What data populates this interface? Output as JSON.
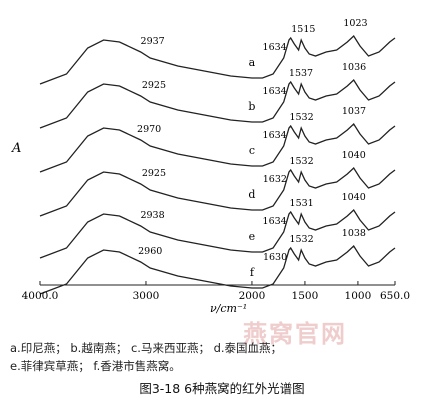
{
  "chart_data": {
    "type": "line",
    "title": "",
    "ylabel": "A",
    "xlabel": "ν/cm⁻¹",
    "xlim": [
      4000,
      650
    ],
    "x_ticks": [
      {
        "value": 4000,
        "label": "4000.0"
      },
      {
        "value": 3000,
        "label": "3000"
      },
      {
        "value": 2000,
        "label": "2000"
      },
      {
        "value": 1500,
        "label": "1500"
      },
      {
        "value": 1000,
        "label": "1000"
      },
      {
        "value": 650,
        "label": "650.0"
      }
    ],
    "grid": false,
    "series": [
      {
        "name": "a",
        "peaks": [
          {
            "x": 2937,
            "label": "2937"
          },
          {
            "x": 1634,
            "label": "1634"
          },
          {
            "x": 1515,
            "label": "1515"
          },
          {
            "x": 1023,
            "label": "1023"
          }
        ]
      },
      {
        "name": "b",
        "peaks": [
          {
            "x": 2925,
            "label": "2925"
          },
          {
            "x": 1634,
            "label": "1634"
          },
          {
            "x": 1537,
            "label": "1537"
          },
          {
            "x": 1036,
            "label": "1036"
          }
        ]
      },
      {
        "name": "c",
        "peaks": [
          {
            "x": 2970,
            "label": "2970"
          },
          {
            "x": 1634,
            "label": "1634"
          },
          {
            "x": 1532,
            "label": "1532"
          },
          {
            "x": 1037,
            "label": "1037"
          }
        ]
      },
      {
        "name": "d",
        "peaks": [
          {
            "x": 2925,
            "label": "2925"
          },
          {
            "x": 1632,
            "label": "1632"
          },
          {
            "x": 1532,
            "label": "1532"
          },
          {
            "x": 1040,
            "label": "1040"
          }
        ]
      },
      {
        "name": "e",
        "peaks": [
          {
            "x": 2938,
            "label": "2938"
          },
          {
            "x": 1634,
            "label": "1634"
          },
          {
            "x": 1531,
            "label": "1531"
          },
          {
            "x": 1040,
            "label": "1040"
          }
        ]
      },
      {
        "name": "f",
        "peaks": [
          {
            "x": 2960,
            "label": "2960"
          },
          {
            "x": 1630,
            "label": "1630"
          },
          {
            "x": 1532,
            "label": "1532"
          },
          {
            "x": 1038,
            "label": "1038"
          }
        ]
      }
    ]
  },
  "legend_line_1": "a.印尼燕；  b.越南燕；  c.马来西亚燕；  d.泰国血燕；",
  "legend_line_2": "e.菲律宾草燕；  f.香港市售燕窝。",
  "caption": "图3-18   6种燕窝的红外光谱图",
  "watermark": "燕窝官网"
}
